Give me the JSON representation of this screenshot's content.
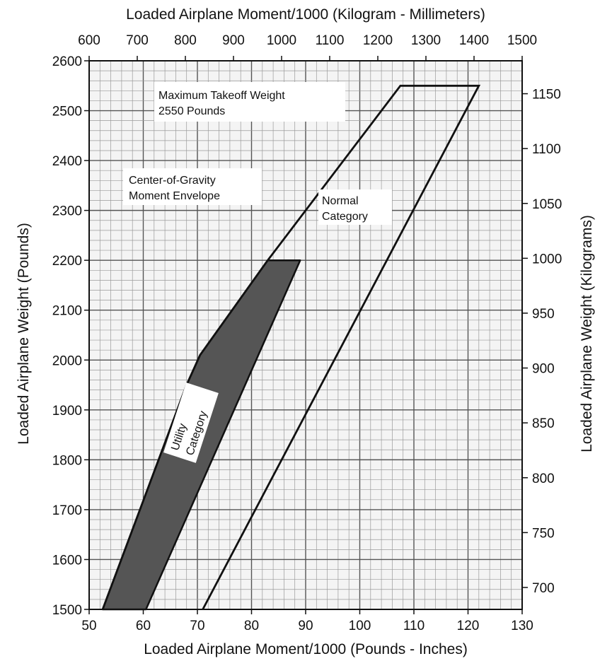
{
  "chart_data": {
    "type": "area",
    "title_top": "Loaded Airplane Moment/1000 (Kilogram - Millimeters)",
    "xlabel": "Loaded Airplane Moment/1000 (Pounds - Inches)",
    "ylabel": "Loaded Airplane Weight (Pounds)",
    "ylabel_right": "Loaded Airplane Weight (Kilograms)",
    "xlim": [
      50,
      130
    ],
    "ylim": [
      1500,
      2600
    ],
    "x2lim": [
      600,
      1500
    ],
    "y2lim": [
      680,
      1180
    ],
    "x_ticks": [
      "50",
      "60",
      "70",
      "80",
      "90",
      "100",
      "110",
      "120",
      "130"
    ],
    "y_ticks": [
      "1500",
      "1600",
      "1700",
      "1800",
      "1900",
      "2000",
      "2100",
      "2200",
      "2300",
      "2400",
      "2500",
      "2600"
    ],
    "x2_ticks": [
      "600",
      "700",
      "800",
      "900",
      "1000",
      "1100",
      "1200",
      "1300",
      "1400",
      "1500"
    ],
    "y2_ticks": [
      "700",
      "750",
      "800",
      "850",
      "900",
      "950",
      "1000",
      "1050",
      "1100",
      "1150"
    ],
    "grid": true,
    "series": [
      {
        "name": "Normal Category",
        "points": [
          [
            52.5,
            1500
          ],
          [
            68,
            1950
          ],
          [
            70.5,
            2010
          ],
          [
            83,
            2200
          ],
          [
            107.5,
            2550
          ],
          [
            122,
            2550
          ],
          [
            71,
            1500
          ]
        ]
      },
      {
        "name": "Utility Category",
        "points": [
          [
            52.5,
            1500
          ],
          [
            68,
            1950
          ],
          [
            70.5,
            2010
          ],
          [
            83,
            2200
          ],
          [
            89,
            2200
          ],
          [
            60.5,
            1500
          ]
        ]
      }
    ],
    "annotations": [
      {
        "lines": [
          "Maximum Takeoff Weight",
          "2550 Pounds"
        ]
      },
      {
        "lines": [
          "Center-of-Gravity",
          "Moment Envelope"
        ]
      },
      {
        "lines": [
          "Normal",
          "Category"
        ]
      },
      {
        "lines": [
          "Utility",
          "Category"
        ]
      }
    ],
    "colors": {
      "envelope_line": "#111111",
      "utility_fill": "#555555",
      "grid": "#9a9a9a",
      "grid_major": "#555555"
    }
  }
}
